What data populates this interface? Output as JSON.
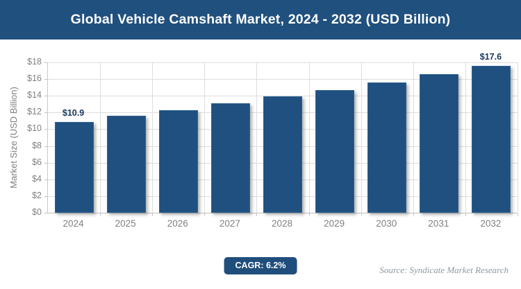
{
  "banner": {
    "title": "Global Vehicle Camshaft Market, 2024 - 2032 (USD Billion)"
  },
  "chart_data": {
    "type": "bar",
    "title": "Global Vehicle Camshaft Market, 2024 - 2032 (USD Billion)",
    "categories": [
      "2024",
      "2025",
      "2026",
      "2027",
      "2028",
      "2029",
      "2030",
      "2031",
      "2032"
    ],
    "values": [
      10.9,
      11.6,
      12.3,
      13.1,
      13.9,
      14.7,
      15.6,
      16.6,
      17.6
    ],
    "point_labels": {
      "0": "$10.9",
      "8": "$17.6"
    },
    "xlabel": "",
    "ylabel": "Market Size (USD Billion)",
    "ylim": [
      0,
      18
    ],
    "ytick_step": 2,
    "ytick_prefix": "$",
    "grid": "both",
    "legend": "none"
  },
  "footer": {
    "cagr_label": "CAGR: 6.2%",
    "source": "Source: Syndicate Market Research"
  },
  "colors": {
    "banner_bg": "#20507E",
    "bar_fill": "#1F5080",
    "bar_border": "#2F6293",
    "badge_bg": "#1F4E7C",
    "label_text": "#17375E",
    "axis_text": "#808080",
    "gridline": "#DDDDDD",
    "source_text": "#8C99A3"
  }
}
